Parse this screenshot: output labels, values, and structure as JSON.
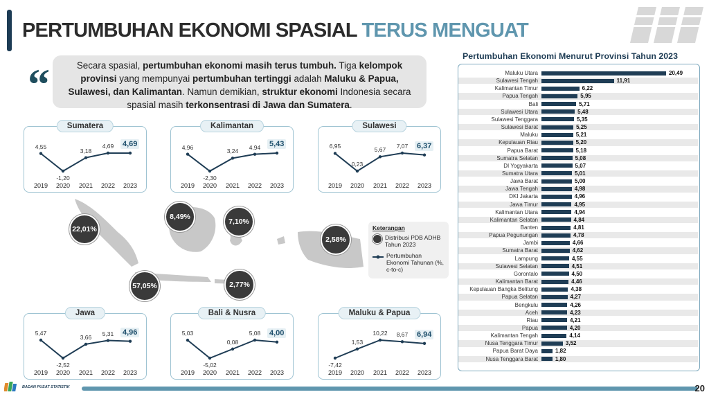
{
  "header": {
    "title_part1": "PERTUMBUHAN EKONOMI SPASIAL",
    "title_part2": "TERUS MENGUAT"
  },
  "quote": {
    "html": "Secara spasial, <b>pertumbuhan ekonomi masih terus tumbuh.</b> Tiga <b>kelompok provinsi</b> yang mempunyai <b>pertumbuhan tertinggi</b> adalah <b>Maluku &amp; Papua, Sulawesi, dan Kalimantan</b>. Namun demikian, <b>struktur ekonomi</b> Indonesia secara spasial masih <b>terkonsentrasi di Jawa dan Sumatera</b>."
  },
  "regions": [
    {
      "name": "Sumatera",
      "years": [
        "2019",
        "2020",
        "2021",
        "2022",
        "2023"
      ],
      "values": [
        "4,55",
        "-1,20",
        "3,18",
        "4,69",
        "4,69"
      ],
      "nums": [
        4.55,
        -1.2,
        3.18,
        4.69,
        4.69
      ]
    },
    {
      "name": "Kalimantan",
      "years": [
        "2019",
        "2020",
        "2021",
        "2022",
        "2023"
      ],
      "values": [
        "4,96",
        "-2,30",
        "3,24",
        "4,94",
        "5,43"
      ],
      "nums": [
        4.96,
        -2.3,
        3.24,
        4.94,
        5.43
      ]
    },
    {
      "name": "Sulawesi",
      "years": [
        "2019",
        "2020",
        "2021",
        "2022",
        "2023"
      ],
      "values": [
        "6,95",
        "0,23",
        "5,67",
        "7,07",
        "6,37"
      ],
      "nums": [
        6.95,
        0.23,
        5.67,
        7.07,
        6.37
      ]
    },
    {
      "name": "Jawa",
      "years": [
        "2019",
        "2020",
        "2021",
        "2022",
        "2023"
      ],
      "values": [
        "5,47",
        "-2,52",
        "3,66",
        "5,31",
        "4,96"
      ],
      "nums": [
        5.47,
        -2.52,
        3.66,
        5.31,
        4.96
      ]
    },
    {
      "name": "Bali & Nusra",
      "years": [
        "2019",
        "2020",
        "2021",
        "2022",
        "2023"
      ],
      "values": [
        "5,03",
        "-5,02",
        "0,08",
        "5,08",
        "4,00"
      ],
      "nums": [
        5.03,
        -5.02,
        0.08,
        5.08,
        4.0
      ]
    },
    {
      "name": "Maluku & Papua",
      "years": [
        "2019",
        "2020",
        "2021",
        "2022",
        "2023"
      ],
      "values": [
        "-7,42",
        "1,53",
        "10,22",
        "8,67",
        "6,94"
      ],
      "nums": [
        -7.42,
        1.53,
        10.22,
        8.67,
        6.94
      ]
    }
  ],
  "bubbles": [
    {
      "label": "22,01%"
    },
    {
      "label": "57,05%"
    },
    {
      "label": "8,49%"
    },
    {
      "label": "2,77%"
    },
    {
      "label": "7,10%"
    },
    {
      "label": "2,58%"
    }
  ],
  "legend": {
    "title": "Keterangan",
    "item1": "Distribusi PDB ADHB Tahun 2023",
    "item2": "Pertumbuhan Ekonomi Tahunan (%, c-to-c)"
  },
  "chart_data": {
    "type": "bar",
    "title": "Pertumbuhan Ekonomi Menurut Provinsi Tahun 2023",
    "categories": [
      "Maluku Utara",
      "Sulawesi Tengah",
      "Kalimantan Timur",
      "Papua Tengah",
      "Bali",
      "Sulawesi Utara",
      "Sulawesi Tenggara",
      "Sulawesi Barat",
      "Maluku",
      "Kepulauan Riau",
      "Papua Barat",
      "Sumatra Selatan",
      "DI Yogyakarta",
      "Sumatra Utara",
      "Jawa Barat",
      "Jawa Tengah",
      "DKI Jakarta",
      "Jawa Timur",
      "Kalimantan Utara",
      "Kalimantan Selatan",
      "Banten",
      "Papua Pegunungan",
      "Jambi",
      "Sumatra Barat",
      "Lampung",
      "Sulawesi Selatan",
      "Gorontalo",
      "Kalimantan Barat",
      "Kepulauan Bangka Belitung",
      "Papua Selatan",
      "Bengkulu",
      "Aceh",
      "Riau",
      "Papua",
      "Kalimantan Tengah",
      "Nusa Tenggara Timur",
      "Papua Barat Daya",
      "Nusa Tenggara Barat"
    ],
    "labels": [
      "20,49",
      "11,91",
      "6,22",
      "5,95",
      "5,71",
      "5,48",
      "5,35",
      "5,25",
      "5,21",
      "5,20",
      "5,18",
      "5,08",
      "5,07",
      "5,01",
      "5,00",
      "4,98",
      "4,96",
      "4,95",
      "4,94",
      "4,84",
      "4,81",
      "4,78",
      "4,66",
      "4,62",
      "4,55",
      "4,51",
      "4,50",
      "4,46",
      "4,38",
      "4,27",
      "4,26",
      "4,23",
      "4,21",
      "4,20",
      "4,14",
      "3,52",
      "1,82",
      "1,80"
    ],
    "values": [
      20.49,
      11.91,
      6.22,
      5.95,
      5.71,
      5.48,
      5.35,
      5.25,
      5.21,
      5.2,
      5.18,
      5.08,
      5.07,
      5.01,
      5.0,
      4.98,
      4.96,
      4.95,
      4.94,
      4.84,
      4.81,
      4.78,
      4.66,
      4.62,
      4.55,
      4.51,
      4.5,
      4.46,
      4.38,
      4.27,
      4.26,
      4.23,
      4.21,
      4.2,
      4.14,
      3.52,
      1.82,
      1.8
    ],
    "orientation": "horizontal"
  },
  "footer": {
    "org": "BADAN PUSAT STATISTIK",
    "page": "20"
  },
  "colors": {
    "navy": "#1f3d55",
    "accent": "#5f96ae",
    "dark_bubble": "#3a3a3a"
  }
}
